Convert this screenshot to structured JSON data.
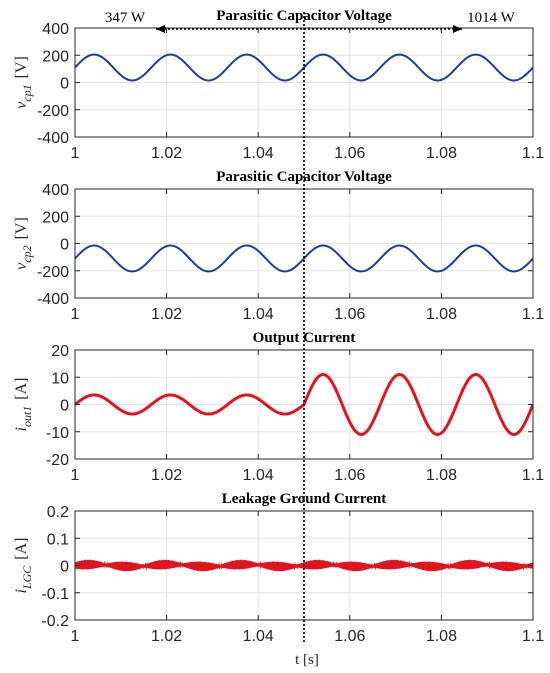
{
  "chart_data": [
    {
      "type": "line",
      "title": "Parasitic Capacitor Voltage",
      "ylabel": {
        "symbol": "v",
        "sub": "cp1",
        "unit": "[V]"
      },
      "xlabel": "",
      "xlim": [
        1,
        1.1
      ],
      "ylim": [
        -400,
        400
      ],
      "xticks": [
        "1",
        "1.02",
        "1.04",
        "1.06",
        "1.08",
        "1.1"
      ],
      "yticks": [
        "400",
        "200",
        "0",
        "-200",
        "-400"
      ],
      "ytick_values": [
        400,
        200,
        0,
        -200,
        -400
      ],
      "grid": true,
      "series": [
        {
          "color": "#1f3d99",
          "waveform": "sine",
          "frequency_hz": 60,
          "offset": 110,
          "amplitude": 95,
          "phase_deg": 0
        }
      ]
    },
    {
      "type": "line",
      "title": "Parasitic Capacitor Voltage",
      "ylabel": {
        "symbol": "v",
        "sub": "cp2",
        "unit": "[V]"
      },
      "xlabel": "",
      "xlim": [
        1,
        1.1
      ],
      "ylim": [
        -400,
        400
      ],
      "xticks": [
        "1",
        "1.02",
        "1.04",
        "1.06",
        "1.08",
        "1.1"
      ],
      "yticks": [
        "400",
        "200",
        "0",
        "-200",
        "-400"
      ],
      "ytick_values": [
        400,
        200,
        0,
        -200,
        -400
      ],
      "grid": true,
      "series": [
        {
          "color": "#1f3d99",
          "waveform": "sine",
          "frequency_hz": 60,
          "offset": -110,
          "amplitude": 95,
          "phase_deg": 0
        }
      ]
    },
    {
      "type": "line",
      "title": "Output Current",
      "ylabel": {
        "symbol": "i",
        "sub": "out1",
        "unit": "[A]"
      },
      "xlabel": "",
      "xlim": [
        1,
        1.1
      ],
      "ylim": [
        -20,
        20
      ],
      "xticks": [
        "1",
        "1.02",
        "1.04",
        "1.06",
        "1.08",
        "1.1"
      ],
      "yticks": [
        "20",
        "10",
        "0",
        "-10",
        "-20"
      ],
      "ytick_values": [
        20,
        10,
        0,
        -10,
        -20
      ],
      "grid": true,
      "series": [
        {
          "color": "#e0141e",
          "waveform": "sine",
          "frequency_hz": 60,
          "offset": 0,
          "amplitude_before_step": 3.5,
          "amplitude_after_step": 11,
          "step_time": 1.05,
          "phase_deg": 0
        }
      ]
    },
    {
      "type": "line",
      "title": "Leakage Ground Current",
      "ylabel": {
        "symbol": "i",
        "sub": "LGC",
        "unit": "[A]"
      },
      "xlabel": "t [s]",
      "xlim": [
        1,
        1.1
      ],
      "ylim": [
        -0.2,
        0.2
      ],
      "xticks": [
        "1",
        "1.02",
        "1.04",
        "1.06",
        "1.08",
        "1.1"
      ],
      "yticks": [
        "0.2",
        "0.1",
        "0",
        "-0.1",
        "-0.2"
      ],
      "ytick_values": [
        0.2,
        0.1,
        0,
        -0.1,
        -0.2
      ],
      "grid": true,
      "series": [
        {
          "color": "#e0141e",
          "waveform": "noise-band",
          "offset": 0,
          "amplitude_min": 0.004,
          "amplitude_max": 0.018,
          "envelope_frequency_hz": 120
        }
      ]
    }
  ],
  "annotation": {
    "left_label": "347 W",
    "right_label": "1014 W",
    "step_time": 1.05
  }
}
